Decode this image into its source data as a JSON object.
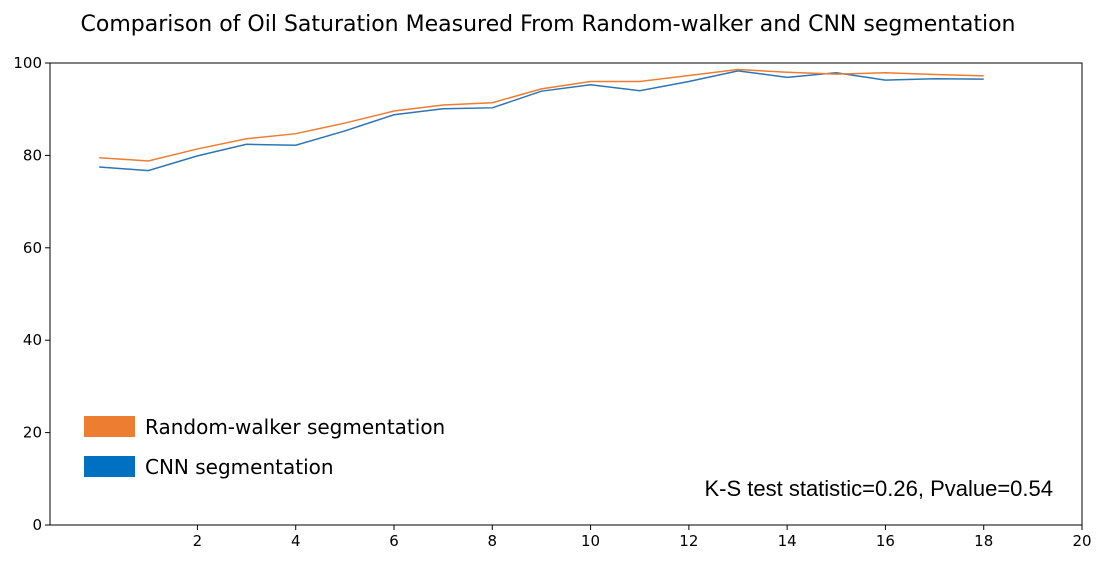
{
  "chart_data": {
    "type": "line",
    "title": "Comparison of Oil Saturation Measured From Random-walker and CNN segmentation",
    "xlabel": "",
    "ylabel": "",
    "xlim": [
      -1,
      20
    ],
    "ylim": [
      0,
      100
    ],
    "x_ticks": [
      2,
      4,
      6,
      8,
      10,
      12,
      14,
      16,
      18,
      20
    ],
    "y_ticks": [
      0,
      20,
      40,
      60,
      80,
      100
    ],
    "grid": false,
    "legend_position": "lower-left",
    "x": [
      0,
      1,
      2,
      3,
      4,
      5,
      6,
      7,
      8,
      9,
      10,
      11,
      12,
      13,
      14,
      15,
      16,
      17,
      18
    ],
    "series": [
      {
        "name": "Random-walker segmentation",
        "color": "#ED7D31",
        "values": [
          79.5,
          78.8,
          81.4,
          83.6,
          84.7,
          87.0,
          89.6,
          90.9,
          91.4,
          94.4,
          96.0,
          96.0,
          97.3,
          98.6,
          98.0,
          97.6,
          97.9,
          97.5,
          97.2
        ]
      },
      {
        "name": "CNN segmentation",
        "color": "#2E75B6",
        "values": [
          77.5,
          76.7,
          79.9,
          82.4,
          82.2,
          85.3,
          88.8,
          90.1,
          90.3,
          93.9,
          95.3,
          94.0,
          96.0,
          98.3,
          96.9,
          97.9,
          96.3,
          96.6,
          96.5
        ]
      }
    ],
    "legend_swatches": [
      "#ED7D31",
      "#0070C0"
    ],
    "annotation": "K-S test statistic=0.26, Pvalue=0.54"
  }
}
